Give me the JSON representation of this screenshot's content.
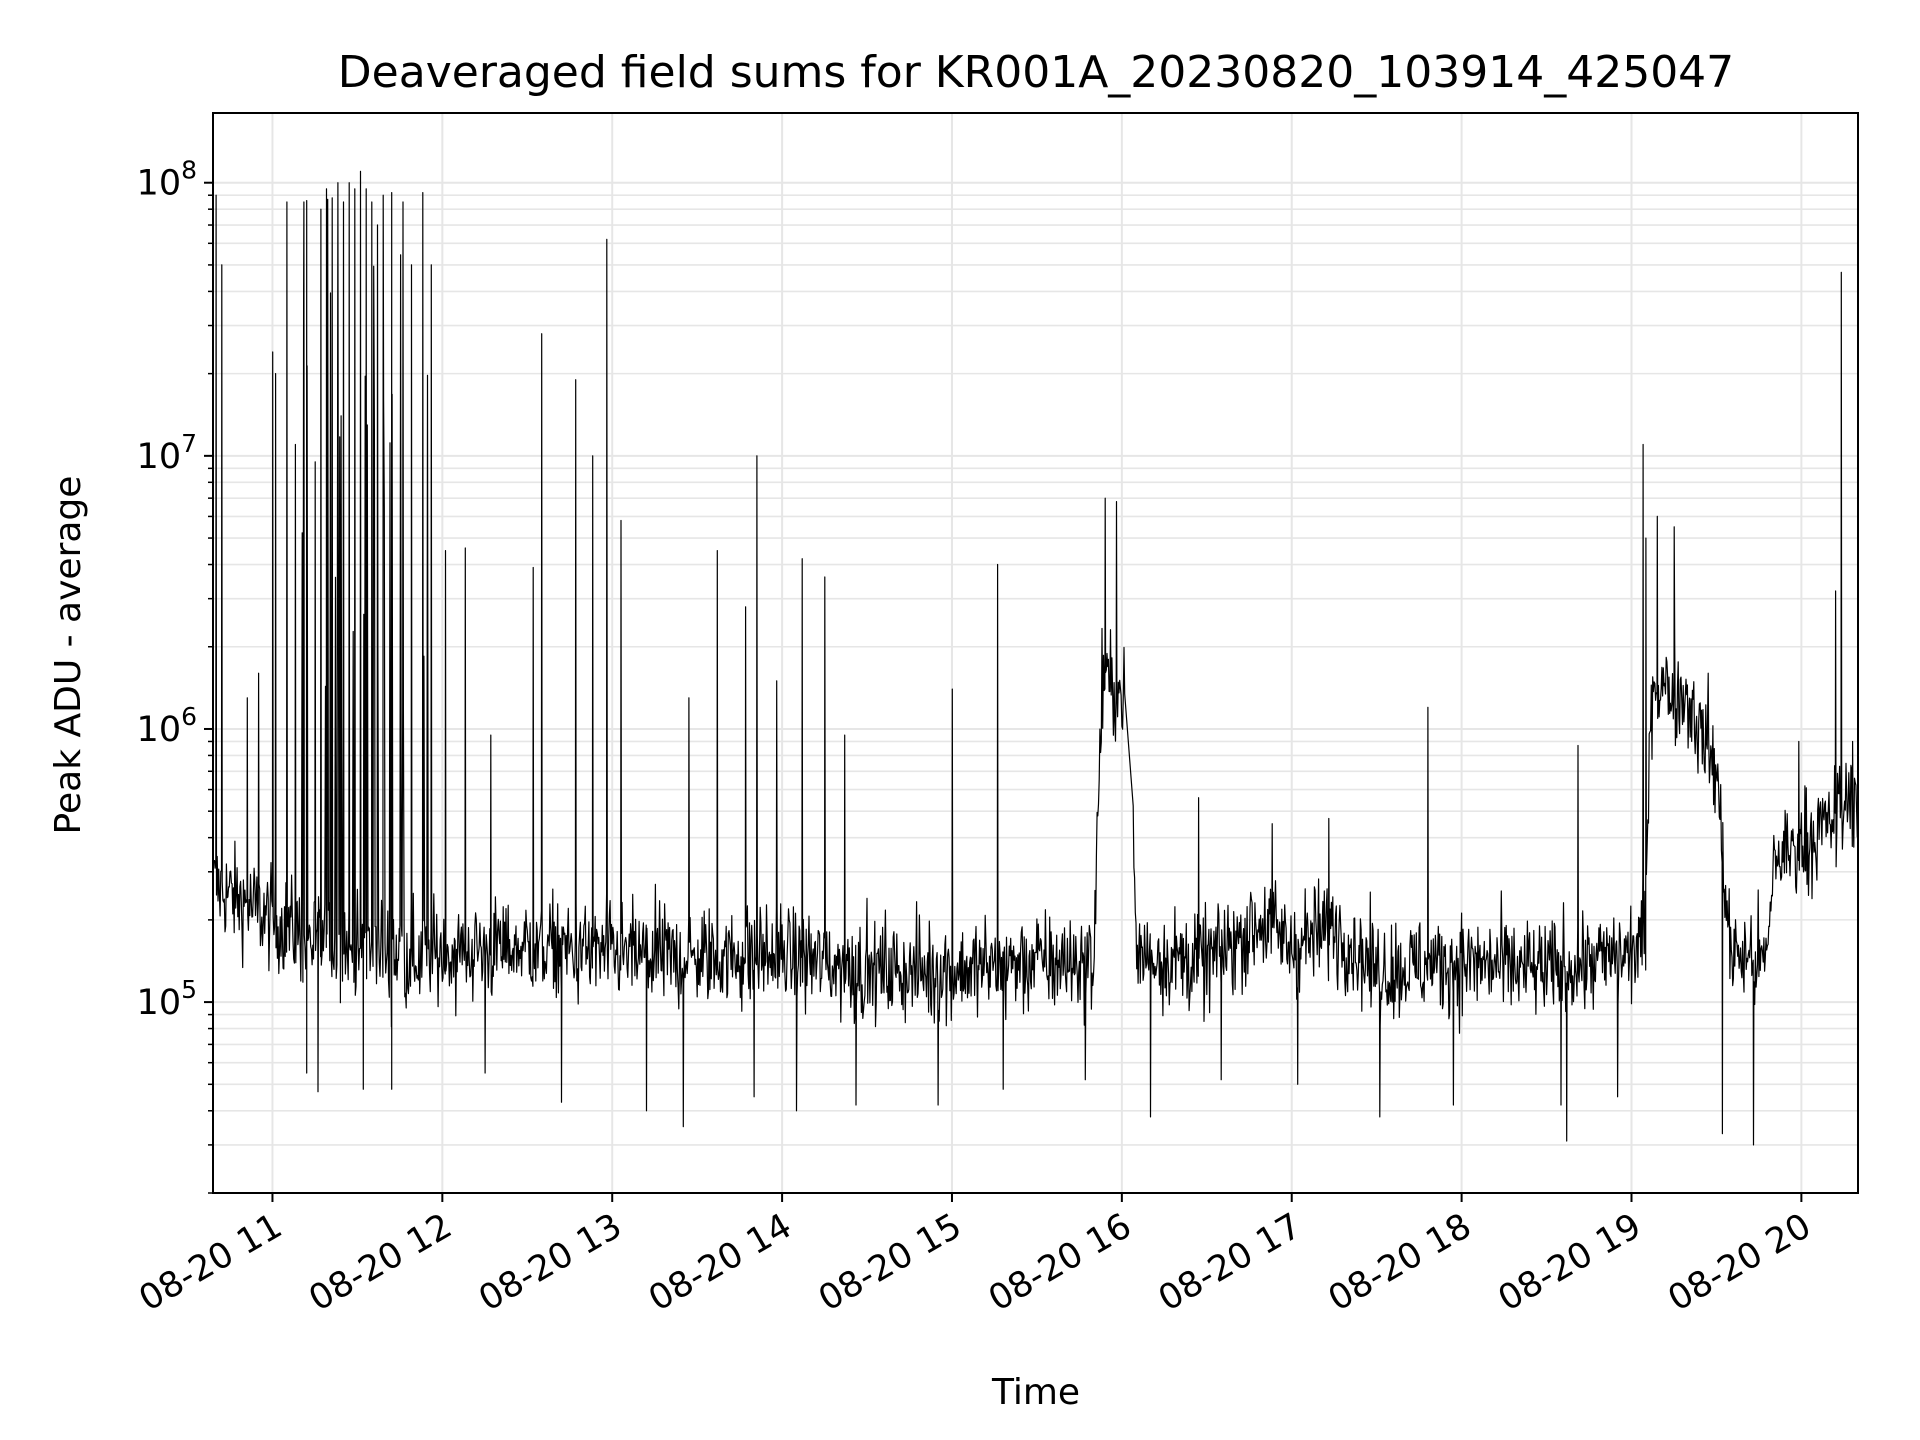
{
  "chart_data": {
    "type": "line",
    "title": "Deaveraged field sums for KR001A_20230820_103914_425047",
    "xlabel": "Time",
    "ylabel": "Peak ADU - average",
    "yscale": "log",
    "ylim": [
      20000,
      180000000
    ],
    "xlim": [
      "2023-08-20 10:39",
      "2023-08-20 20:20"
    ],
    "grid": true,
    "grid_minor": true,
    "legend": "none",
    "line_color": "#000000",
    "grid_color": "#e6e6e6",
    "x_ticks": [
      {
        "t": "2023-08-20 11:00",
        "label": "08-20 11"
      },
      {
        "t": "2023-08-20 12:00",
        "label": "08-20 12"
      },
      {
        "t": "2023-08-20 13:00",
        "label": "08-20 13"
      },
      {
        "t": "2023-08-20 14:00",
        "label": "08-20 14"
      },
      {
        "t": "2023-08-20 15:00",
        "label": "08-20 15"
      },
      {
        "t": "2023-08-20 16:00",
        "label": "08-20 16"
      },
      {
        "t": "2023-08-20 17:00",
        "label": "08-20 17"
      },
      {
        "t": "2023-08-20 18:00",
        "label": "08-20 18"
      },
      {
        "t": "2023-08-20 19:00",
        "label": "08-20 19"
      },
      {
        "t": "2023-08-20 20:00",
        "label": "08-20 20"
      }
    ],
    "y_ticks": [
      {
        "value": 100000,
        "base": "10",
        "exp": "5"
      },
      {
        "value": 1000000,
        "base": "10",
        "exp": "6"
      },
      {
        "value": 10000000,
        "base": "10",
        "exp": "7"
      },
      {
        "value": 100000000,
        "base": "10",
        "exp": "8"
      }
    ],
    "series": [
      {
        "baseline": [
          [
            "2023-08-20 10:39",
            270000
          ],
          [
            "2023-08-20 10:50",
            230000
          ],
          [
            "2023-08-20 11:00",
            200000
          ],
          [
            "2023-08-20 11:20",
            160000
          ],
          [
            "2023-08-20 11:40",
            150000
          ],
          [
            "2023-08-20 12:00",
            150000
          ],
          [
            "2023-08-20 12:30",
            160000
          ],
          [
            "2023-08-20 13:00",
            150000
          ],
          [
            "2023-08-20 13:30",
            145000
          ],
          [
            "2023-08-20 14:00",
            150000
          ],
          [
            "2023-08-20 14:30",
            130000
          ],
          [
            "2023-08-20 15:00",
            130000
          ],
          [
            "2023-08-20 15:30",
            140000
          ],
          [
            "2023-08-20 15:50",
            140000
          ],
          [
            "2023-08-20 15:53",
            1500000
          ],
          [
            "2023-08-20 16:03",
            1300000
          ],
          [
            "2023-08-20 16:05",
            150000
          ],
          [
            "2023-08-20 16:30",
            140000
          ],
          [
            "2023-08-20 16:50",
            200000
          ],
          [
            "2023-08-20 17:00",
            160000
          ],
          [
            "2023-08-20 17:15",
            190000
          ],
          [
            "2023-08-20 17:30",
            130000
          ],
          [
            "2023-08-20 18:00",
            140000
          ],
          [
            "2023-08-20 18:30",
            130000
          ],
          [
            "2023-08-20 19:00",
            150000
          ],
          [
            "2023-08-20 19:05",
            180000
          ],
          [
            "2023-08-20 19:07",
            1500000
          ],
          [
            "2023-08-20 19:20",
            1300000
          ],
          [
            "2023-08-20 19:30",
            700000
          ],
          [
            "2023-08-20 19:35",
            150000
          ],
          [
            "2023-08-20 19:48",
            140000
          ],
          [
            "2023-08-20 19:50",
            330000
          ],
          [
            "2023-08-20 20:00",
            380000
          ],
          [
            "2023-08-20 20:10",
            450000
          ],
          [
            "2023-08-20 20:20",
            600000
          ]
        ],
        "spikes": [
          [
            "2023-08-20 10:40",
            90000000
          ],
          [
            "2023-08-20 10:42",
            50000000
          ],
          [
            "2023-08-20 10:51",
            1300000
          ],
          [
            "2023-08-20 10:55",
            1600000
          ],
          [
            "2023-08-20 11:00",
            24000000
          ],
          [
            "2023-08-20 11:01",
            20000000
          ],
          [
            "2023-08-20 11:05",
            85000000
          ],
          [
            "2023-08-20 11:08",
            11000000
          ],
          [
            "2023-08-20 11:11",
            85000000
          ],
          [
            "2023-08-20 11:12",
            86000000
          ],
          [
            "2023-08-20 11:15",
            9500000
          ],
          [
            "2023-08-20 11:17",
            80000000
          ],
          [
            "2023-08-20 11:19",
            95000000
          ],
          [
            "2023-08-20 11:21",
            88000000
          ],
          [
            "2023-08-20 11:23",
            100000000
          ],
          [
            "2023-08-20 11:25",
            85000000
          ],
          [
            "2023-08-20 11:27",
            100000000
          ],
          [
            "2023-08-20 11:29",
            95000000
          ],
          [
            "2023-08-20 11:31",
            110000000
          ],
          [
            "2023-08-20 11:33",
            95000000
          ],
          [
            "2023-08-20 11:35",
            85000000
          ],
          [
            "2023-08-20 11:37",
            70000000
          ],
          [
            "2023-08-20 11:39",
            90000000
          ],
          [
            "2023-08-20 11:42",
            92000000
          ],
          [
            "2023-08-20 11:46",
            85000000
          ],
          [
            "2023-08-20 11:49",
            50000000
          ],
          [
            "2023-08-20 11:53",
            92000000
          ],
          [
            "2023-08-20 11:56",
            50000000
          ],
          [
            "2023-08-20 12:01",
            4500000
          ],
          [
            "2023-08-20 12:08",
            4600000
          ],
          [
            "2023-08-20 12:17",
            950000
          ],
          [
            "2023-08-20 12:32",
            3900000
          ],
          [
            "2023-08-20 12:35",
            28000000
          ],
          [
            "2023-08-20 12:47",
            19000000
          ],
          [
            "2023-08-20 12:53",
            10000000
          ],
          [
            "2023-08-20 12:58",
            62000000
          ],
          [
            "2023-08-20 13:03",
            5800000
          ],
          [
            "2023-08-20 13:27",
            1300000
          ],
          [
            "2023-08-20 13:37",
            4500000
          ],
          [
            "2023-08-20 13:47",
            2800000
          ],
          [
            "2023-08-20 13:51",
            10000000
          ],
          [
            "2023-08-20 13:58",
            1500000
          ],
          [
            "2023-08-20 14:07",
            4200000
          ],
          [
            "2023-08-20 14:15",
            3600000
          ],
          [
            "2023-08-20 14:22",
            950000
          ],
          [
            "2023-08-20 15:00",
            1400000
          ],
          [
            "2023-08-20 15:16",
            4000000
          ],
          [
            "2023-08-20 15:54",
            7000000
          ],
          [
            "2023-08-20 15:58",
            6800000
          ],
          [
            "2023-08-20 16:27",
            560000
          ],
          [
            "2023-08-20 16:53",
            450000
          ],
          [
            "2023-08-20 17:13",
            470000
          ],
          [
            "2023-08-20 17:48",
            1200000
          ],
          [
            "2023-08-20 18:41",
            870000
          ],
          [
            "2023-08-20 19:04",
            11000000
          ],
          [
            "2023-08-20 19:05",
            5000000
          ],
          [
            "2023-08-20 19:09",
            6000000
          ],
          [
            "2023-08-20 19:15",
            5500000
          ],
          [
            "2023-08-20 19:27",
            1600000
          ],
          [
            "2023-08-20 19:59",
            900000
          ],
          [
            "2023-08-20 20:12",
            3200000
          ],
          [
            "2023-08-20 20:14",
            47000000
          ],
          [
            "2023-08-20 20:18",
            900000
          ]
        ],
        "dips": [
          [
            "2023-08-20 11:12",
            55000
          ],
          [
            "2023-08-20 11:16",
            47000
          ],
          [
            "2023-08-20 11:32",
            48000
          ],
          [
            "2023-08-20 11:42",
            48000
          ],
          [
            "2023-08-20 12:15",
            55000
          ],
          [
            "2023-08-20 12:42",
            43000
          ],
          [
            "2023-08-20 13:12",
            40000
          ],
          [
            "2023-08-20 13:25",
            35000
          ],
          [
            "2023-08-20 13:50",
            45000
          ],
          [
            "2023-08-20 14:05",
            40000
          ],
          [
            "2023-08-20 14:26",
            42000
          ],
          [
            "2023-08-20 14:55",
            42000
          ],
          [
            "2023-08-20 15:18",
            48000
          ],
          [
            "2023-08-20 15:47",
            52000
          ],
          [
            "2023-08-20 16:10",
            38000
          ],
          [
            "2023-08-20 16:35",
            52000
          ],
          [
            "2023-08-20 17:02",
            50000
          ],
          [
            "2023-08-20 17:31",
            38000
          ],
          [
            "2023-08-20 17:57",
            42000
          ],
          [
            "2023-08-20 18:35",
            42000
          ],
          [
            "2023-08-20 18:37",
            31000
          ],
          [
            "2023-08-20 18:55",
            45000
          ],
          [
            "2023-08-20 19:32",
            33000
          ],
          [
            "2023-08-20 19:43",
            30000
          ]
        ]
      }
    ]
  }
}
